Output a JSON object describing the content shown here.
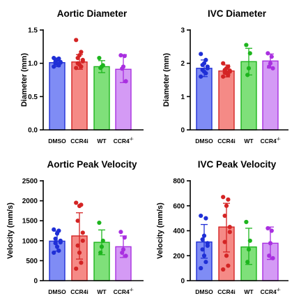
{
  "colors": {
    "DMSO": {
      "fill": "#7f8cf5",
      "stroke": "#1f2fd6",
      "dot": "#1f2fd6"
    },
    "CCR4i": {
      "fill": "#f58a86",
      "stroke": "#d42424",
      "dot": "#d42424"
    },
    "WT": {
      "fill": "#7fe07a",
      "stroke": "#1db51d",
      "dot": "#1db51d"
    },
    "CCR4-/-": {
      "fill": "#d49af5",
      "stroke": "#a92fe0",
      "dot": "#a92fe0"
    }
  },
  "chart_data": [
    {
      "type": "bar",
      "title": "Aortic Diameter",
      "ylabel": "Diameter (mm)",
      "ylim": [
        0,
        1.5
      ],
      "yticks": [
        "0.0",
        "0.5",
        "1.0",
        "1.5"
      ],
      "categories": [
        "DMSO",
        "CCR4i",
        "WT",
        "CCR4-/-"
      ],
      "values": [
        1.01,
        1.02,
        0.95,
        0.91
      ],
      "err_upper": [
        1.08,
        1.13,
        1.04,
        1.13
      ],
      "err_lower": [
        0.95,
        0.91,
        0.86,
        0.71
      ],
      "points": [
        [
          1.08,
          1.07,
          1.05,
          1.03,
          1.02,
          1.01,
          1.0,
          0.99,
          0.97,
          0.95
        ],
        [
          1.35,
          1.17,
          1.12,
          1.08,
          1.05,
          1.03,
          1.0,
          0.98,
          0.95,
          0.93
        ],
        [
          1.08,
          0.97,
          0.95,
          0.93
        ],
        [
          1.12,
          1.11,
          0.95,
          0.92,
          0.73
        ]
      ]
    },
    {
      "type": "bar",
      "title": "IVC Diameter",
      "ylabel": "Diameter (mm)",
      "ylim": [
        0,
        3
      ],
      "yticks": [
        "0",
        "1",
        "2",
        "3"
      ],
      "categories": [
        "DMSO",
        "CCR4i",
        "WT",
        "CCR4-/-"
      ],
      "values": [
        1.85,
        1.77,
        2.05,
        2.07
      ],
      "err_upper": [
        2.1,
        1.95,
        2.45,
        2.28
      ],
      "err_lower": [
        1.6,
        1.59,
        1.65,
        1.86
      ],
      "points": [
        [
          2.28,
          2.1,
          2.0,
          1.95,
          1.9,
          1.85,
          1.8,
          1.75,
          1.7,
          1.6
        ],
        [
          2.0,
          1.9,
          1.85,
          1.8,
          1.78,
          1.75,
          1.72,
          1.7,
          1.65,
          1.6
        ],
        [
          2.55,
          2.3,
          1.85,
          1.65
        ],
        [
          2.3,
          2.2,
          2.0,
          1.9,
          1.85
        ]
      ]
    },
    {
      "type": "bar",
      "title": "Aortic Peak Velocity",
      "ylabel": "Velocity (mm/s)",
      "ylim": [
        0,
        2500
      ],
      "yticks": [
        "0",
        "500",
        "1000",
        "1500",
        "2000",
        "2500"
      ],
      "categories": [
        "DMSO",
        "CCR4i",
        "WT",
        "CCR4-/-"
      ],
      "values": [
        990,
        1120,
        960,
        850
      ],
      "err_upper": [
        1240,
        1700,
        1270,
        1120
      ],
      "err_lower": [
        740,
        540,
        650,
        580
      ],
      "points": [
        [
          1280,
          1250,
          1180,
          1050,
          1000,
          960,
          940,
          850,
          750,
          700
        ],
        [
          1950,
          1900,
          1870,
          1500,
          1200,
          1000,
          880,
          700,
          450,
          300
        ],
        [
          1450,
          1000,
          850,
          700
        ],
        [
          1220,
          1080,
          780,
          700,
          620
        ]
      ]
    },
    {
      "type": "bar",
      "title": "IVC Peak Velocity",
      "ylabel": "Velocity (mm/s)",
      "ylim": [
        0,
        800
      ],
      "yticks": [
        "0",
        "200",
        "400",
        "600",
        "800"
      ],
      "categories": [
        "DMSO",
        "CCR4i",
        "WT",
        "CCR4-/-"
      ],
      "values": [
        310,
        430,
        270,
        300
      ],
      "err_upper": [
        450,
        620,
        420,
        430
      ],
      "err_lower": [
        180,
        230,
        130,
        170
      ],
      "points": [
        [
          520,
          500,
          360,
          330,
          300,
          280,
          250,
          200,
          150,
          100
        ],
        [
          670,
          650,
          600,
          520,
          430,
          390,
          310,
          200,
          120,
          90
        ],
        [
          470,
          320,
          250,
          150
        ],
        [
          420,
          400,
          300,
          200,
          180
        ]
      ]
    }
  ]
}
